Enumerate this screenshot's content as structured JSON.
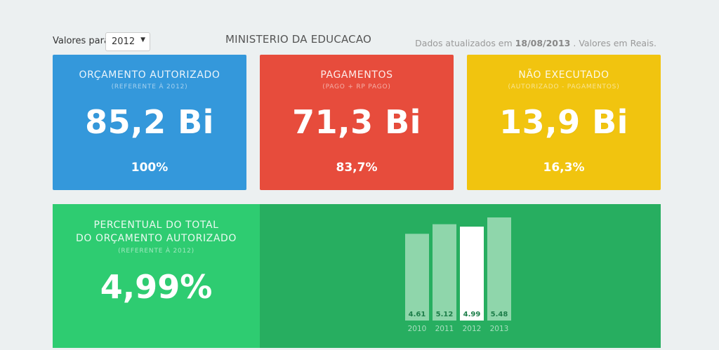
{
  "header": {
    "year_label": "Valores para",
    "selected_year": "2012",
    "title": "MINISTERIO DA EDUCACAO",
    "updated_prefix": "Dados atualizados em",
    "updated_date": "18/08/2013",
    "updated_suffix": ". Valores em Reais."
  },
  "cards": {
    "orcamento": {
      "title": "ORÇAMENTO AUTORIZADO",
      "subtitle": "(REFERENTE À 2012)",
      "value": "85,2 Bi",
      "pct": "100%",
      "color": "#3498db"
    },
    "pagamentos": {
      "title": "PAGAMENTOS",
      "subtitle": "(PAGO + RP PAGO)",
      "value": "71,3 Bi",
      "pct": "83,7%",
      "color": "#e74c3c"
    },
    "nao_executado": {
      "title": "NÃO EXECUTADO",
      "subtitle": "(AUTORIZADO - PAGAMENTOS)",
      "value": "13,9 Bi",
      "pct": "16,3%",
      "color": "#f1c40f"
    }
  },
  "percentual": {
    "title_line1": "PERCENTUAL DO TOTAL",
    "title_line2": "DO ORÇAMENTO AUTORIZADO",
    "subtitle": "(REFERENTE À 2012)",
    "value": "4,99%",
    "color": "#2ecc71",
    "chart_bg": "#27ae60"
  },
  "chart_data": {
    "type": "bar",
    "categories": [
      "2010",
      "2011",
      "2012",
      "2013"
    ],
    "values": [
      4.61,
      5.12,
      4.99,
      5.48
    ],
    "value_labels": [
      "4.61",
      "5.12",
      "4.99",
      "5.48"
    ],
    "highlighted": "2012",
    "bar_color": "#8fd6ab",
    "highlight_color": "#ffffff",
    "ylim": [
      0,
      5.48
    ]
  }
}
